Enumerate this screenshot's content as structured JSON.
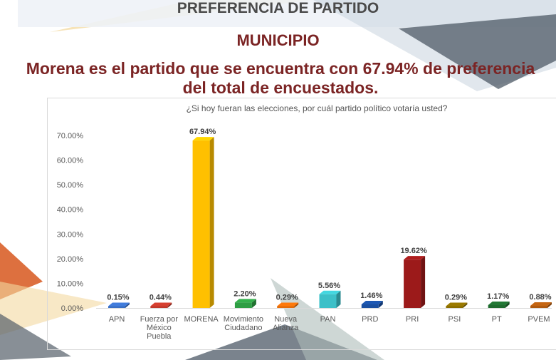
{
  "header": {
    "title": "PREFERENCIA DE PARTIDO"
  },
  "section": {
    "title": "MUNICIPIO"
  },
  "headline": {
    "line1": "Morena es el partido que se encuentra con 67.94% de preferencia",
    "line2": "del total de encuestados."
  },
  "chart_data": {
    "type": "bar",
    "title": "¿Si hoy fueran las elecciones, por cuál partido político votaría usted?",
    "xlabel": "",
    "ylabel": "",
    "ylim": [
      0,
      70
    ],
    "yticks": [
      "0.00%",
      "10.00%",
      "20.00%",
      "30.00%",
      "40.00%",
      "50.00%",
      "60.00%",
      "70.00%"
    ],
    "grid": false,
    "categories": [
      [
        "APN"
      ],
      [
        "Fuerza por",
        "México",
        "Puebla"
      ],
      [
        "MORENA"
      ],
      [
        "Movimiento",
        "Ciudadano"
      ],
      [
        "Nueva",
        "Alianza"
      ],
      [
        "PAN"
      ],
      [
        "PRD"
      ],
      [
        "PRI"
      ],
      [
        "PSI"
      ],
      [
        "PT"
      ],
      [
        "PVEM"
      ]
    ],
    "values": [
      0.15,
      0.44,
      67.94,
      2.2,
      0.29,
      5.56,
      1.46,
      19.62,
      0.29,
      1.17,
      0.88
    ],
    "data_labels": [
      "0.15%",
      "0.44%",
      "67.94%",
      "2.20%",
      "0.29%",
      "5.56%",
      "1.46%",
      "19.62%",
      "0.29%",
      "1.17%",
      "0.88%"
    ],
    "colors": [
      "#3a6fc4",
      "#c0392b",
      "#ffc000",
      "#2e9e44",
      "#e36c0a",
      "#3cc0c8",
      "#1a4fa0",
      "#9c1a1a",
      "#8a6d00",
      "#1e6b2e",
      "#b05a10"
    ]
  }
}
